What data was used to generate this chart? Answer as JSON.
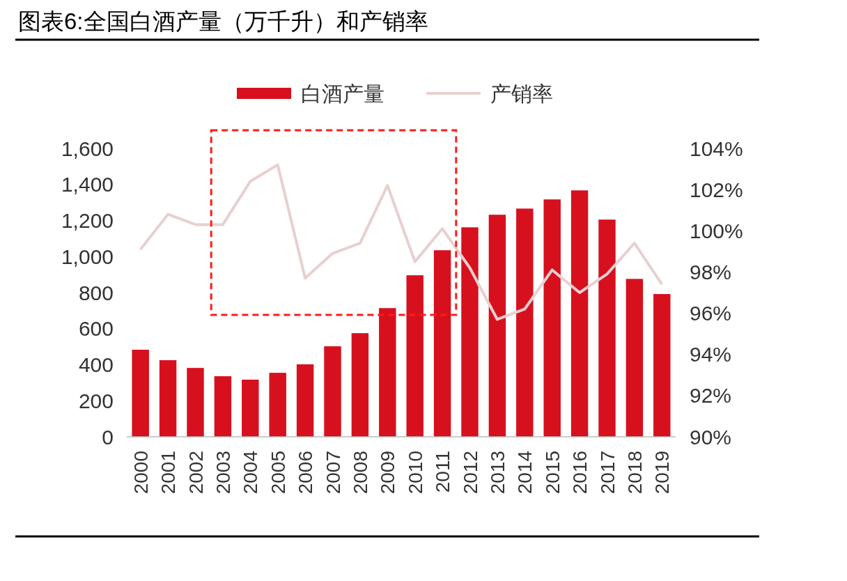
{
  "chart_data": {
    "type": "bar",
    "title": "图表6:全国白酒产量（万千升）和产销率",
    "categories": [
      "2000",
      "2001",
      "2002",
      "2003",
      "2004",
      "2005",
      "2006",
      "2007",
      "2008",
      "2009",
      "2010",
      "2011",
      "2012",
      "2013",
      "2014",
      "2015",
      "2016",
      "2017",
      "2018",
      "2019"
    ],
    "series": [
      {
        "name": "白酒产量",
        "color": "#d7101e",
        "values": [
          483,
          425,
          382,
          336,
          317,
          355,
          402,
          502,
          575,
          714,
          896,
          1035,
          1162,
          1232,
          1266,
          1317,
          1367,
          1205,
          876,
          792
        ]
      },
      {
        "name": "产销率",
        "type": "line",
        "axis": "y2",
        "color": "#e8d0d0",
        "values": [
          99.1,
          100.8,
          100.3,
          100.3,
          102.4,
          103.2,
          97.7,
          98.9,
          99.4,
          102.2,
          98.5,
          100.1,
          98.2,
          95.7,
          96.2,
          98.1,
          97.0,
          97.9,
          99.4,
          97.4
        ]
      }
    ],
    "ylim": [
      0,
      1600
    ],
    "yticks": [
      0,
      200,
      400,
      600,
      800,
      {
        "value": 1000,
        "label": "1,000"
      },
      {
        "value": 1200,
        "label": "1,200"
      },
      {
        "value": 1400,
        "label": "1,400"
      },
      {
        "value": 1600,
        "label": "1,600"
      }
    ],
    "y2lim": [
      90,
      104
    ],
    "y2ticks": [
      {
        "value": 90,
        "label": "90%"
      },
      {
        "value": 92,
        "label": "92%"
      },
      {
        "value": 94,
        "label": "94%"
      },
      {
        "value": 96,
        "label": "96%"
      },
      {
        "value": 98,
        "label": "98%"
      },
      {
        "value": 100,
        "label": "100%"
      },
      {
        "value": 102,
        "label": "102%"
      },
      {
        "value": 104,
        "label": "104%"
      }
    ],
    "legend": "top",
    "grid": false
  }
}
